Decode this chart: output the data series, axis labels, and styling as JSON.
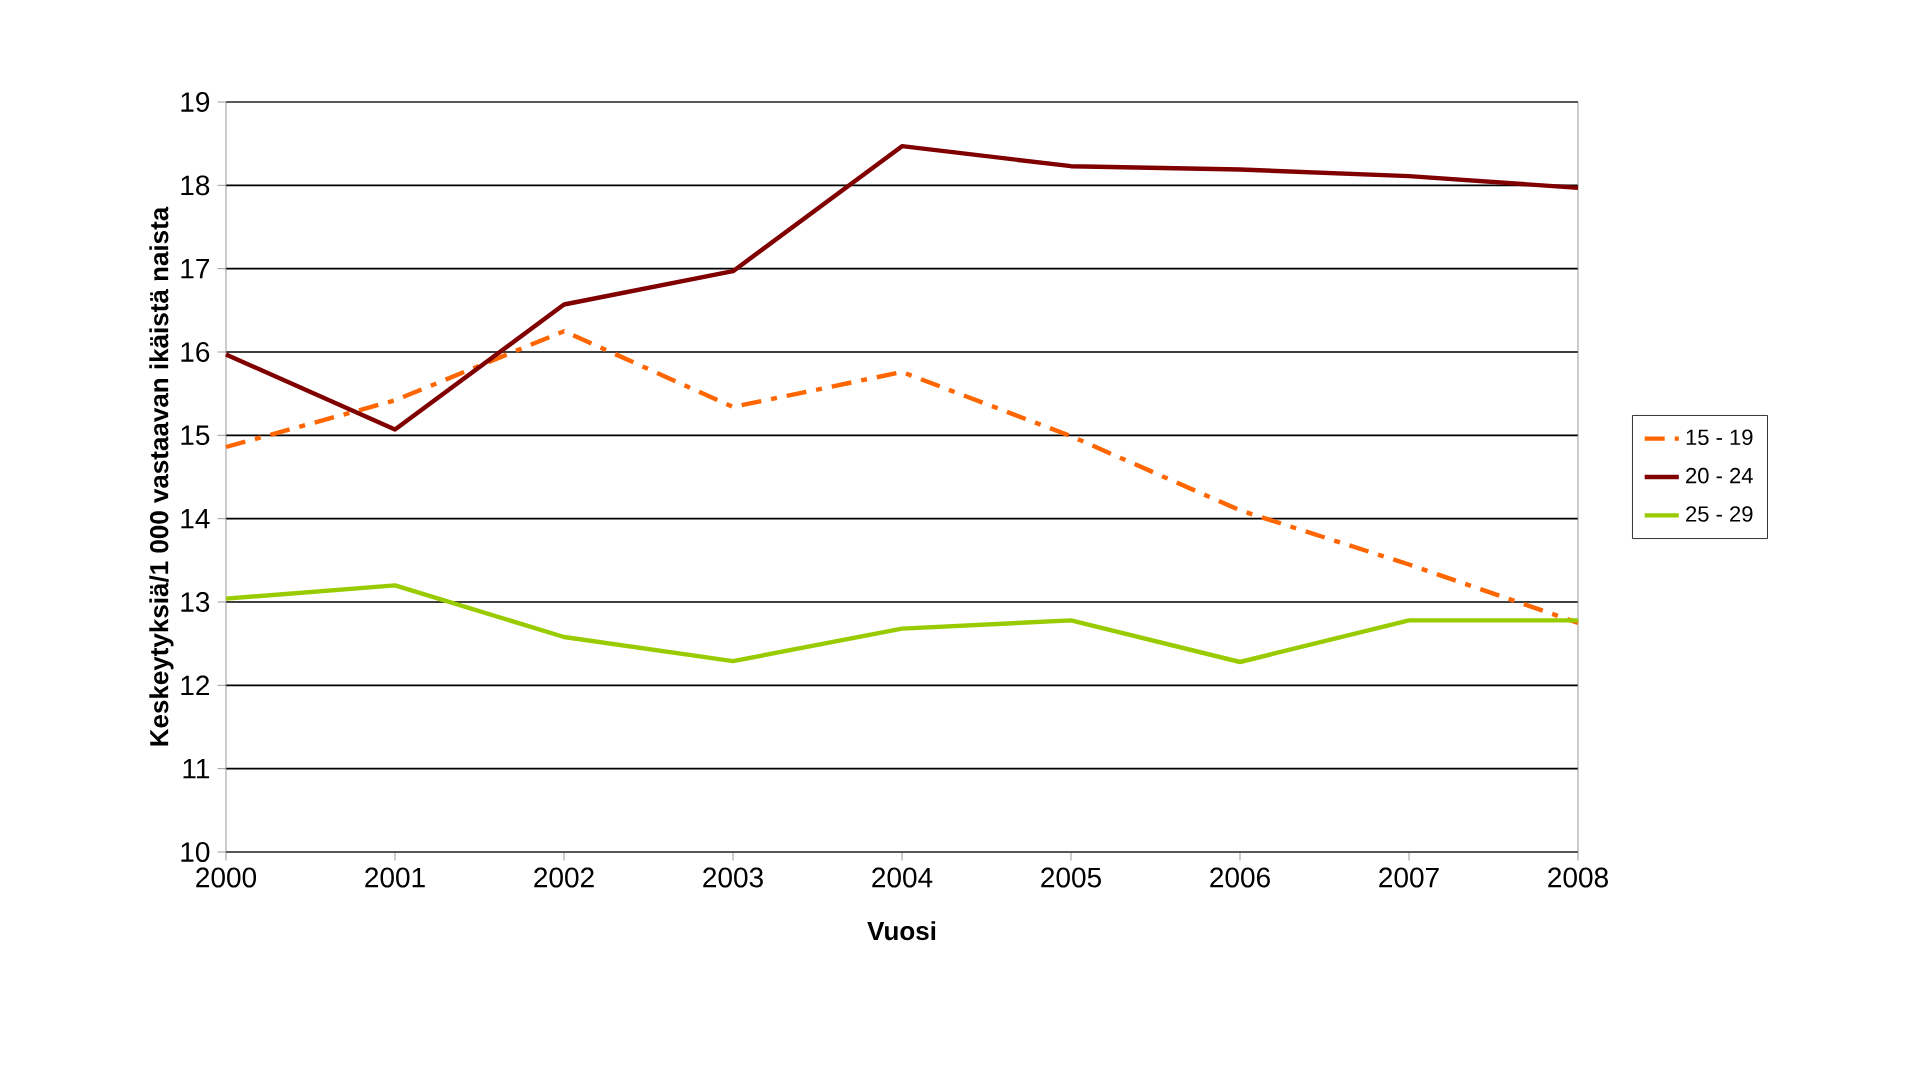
{
  "chart_data": {
    "type": "line",
    "xlabel": "Vuosi",
    "ylabel": "Keskeytyksiä/1 000 vastaavan ikäistä naista",
    "x": [
      2000,
      2001,
      2002,
      2003,
      2004,
      2005,
      2006,
      2007,
      2008
    ],
    "series": [
      {
        "name": "15 - 19",
        "color": "#ff6600",
        "line_style": "dashdot",
        "values": [
          14.86,
          15.42,
          16.25,
          15.34,
          15.76,
          14.99,
          14.1,
          13.45,
          12.75
        ]
      },
      {
        "name": "20 - 24",
        "color": "#800000",
        "values": [
          15.97,
          15.07,
          16.57,
          16.97,
          18.47,
          18.23,
          18.19,
          18.11,
          17.97
        ]
      },
      {
        "name": "25 - 29",
        "color": "#99cc00",
        "values": [
          13.04,
          13.2,
          12.58,
          12.29,
          12.68,
          12.78,
          12.28,
          12.78,
          12.78
        ]
      }
    ],
    "xlim": [
      2000,
      2008
    ],
    "xticks": [
      2000,
      2001,
      2002,
      2003,
      2004,
      2005,
      2006,
      2007,
      2008
    ],
    "ylim": [
      10,
      19
    ],
    "yticks": [
      10,
      11,
      12,
      13,
      14,
      15,
      16,
      17,
      18,
      19
    ],
    "grid": "y",
    "legend": "right",
    "marker": "none",
    "line_style": "solid"
  }
}
